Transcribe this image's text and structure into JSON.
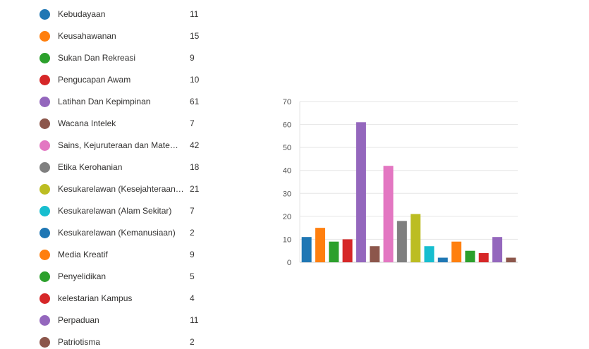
{
  "legend": {
    "items": [
      {
        "label": "Kebudayaan",
        "count": "11",
        "color": "#1f77b4"
      },
      {
        "label": "Keusahawanan",
        "count": "15",
        "color": "#ff7f0e"
      },
      {
        "label": "Sukan Dan Rekreasi",
        "count": "9",
        "color": "#2ca02c"
      },
      {
        "label": "Pengucapan Awam",
        "count": "10",
        "color": "#d62728"
      },
      {
        "label": "Latihan Dan Kepimpinan",
        "count": "61",
        "color": "#9467bd"
      },
      {
        "label": "Wacana Intelek",
        "count": "7",
        "color": "#8c564b"
      },
      {
        "label": "Sains, Kejuruteraan dan Matema...",
        "count": "42",
        "color": "#e377c2"
      },
      {
        "label": "Etika Kerohanian",
        "count": "18",
        "color": "#7f7f7f"
      },
      {
        "label": "Kesukarelawan (Kesejahteraan K...",
        "count": "21",
        "color": "#bcbd22"
      },
      {
        "label": "Kesukarelawan (Alam Sekitar)",
        "count": "7",
        "color": "#17becf"
      },
      {
        "label": "Kesukarelawan (Kemanusiaan)",
        "count": "2",
        "color": "#1f77b4"
      },
      {
        "label": "Media Kreatif",
        "count": "9",
        "color": "#ff7f0e"
      },
      {
        "label": "Penyelidikan",
        "count": "5",
        "color": "#2ca02c"
      },
      {
        "label": "kelestarian Kampus",
        "count": "4",
        "color": "#d62728"
      },
      {
        "label": "Perpaduan",
        "count": "11",
        "color": "#9467bd"
      },
      {
        "label": "Patriotisma",
        "count": "2",
        "color": "#8c564b"
      }
    ]
  },
  "chart_data": {
    "type": "bar",
    "categories": [
      "Kebudayaan",
      "Keusahawanan",
      "Sukan Dan Rekreasi",
      "Pengucapan Awam",
      "Latihan Dan Kepimpinan",
      "Wacana Intelek",
      "Sains, Kejuruteraan dan Matema...",
      "Etika Kerohanian",
      "Kesukarelawan (Kesejahteraan K...",
      "Kesukarelawan (Alam Sekitar)",
      "Kesukarelawan (Kemanusiaan)",
      "Media Kreatif",
      "Penyelidikan",
      "kelestarian Kampus",
      "Perpaduan",
      "Patriotisma"
    ],
    "values": [
      11,
      15,
      9,
      10,
      61,
      7,
      42,
      18,
      21,
      7,
      2,
      9,
      5,
      4,
      11,
      2
    ],
    "colors": [
      "#1f77b4",
      "#ff7f0e",
      "#2ca02c",
      "#d62728",
      "#9467bd",
      "#8c564b",
      "#e377c2",
      "#7f7f7f",
      "#bcbd22",
      "#17becf",
      "#1f77b4",
      "#ff7f0e",
      "#2ca02c",
      "#d62728",
      "#9467bd",
      "#8c564b"
    ],
    "yticks": [
      "0",
      "10",
      "20",
      "30",
      "40",
      "50",
      "60",
      "70"
    ],
    "ylim": [
      0,
      70
    ],
    "grid": true,
    "title": "",
    "xlabel": "",
    "ylabel": ""
  }
}
